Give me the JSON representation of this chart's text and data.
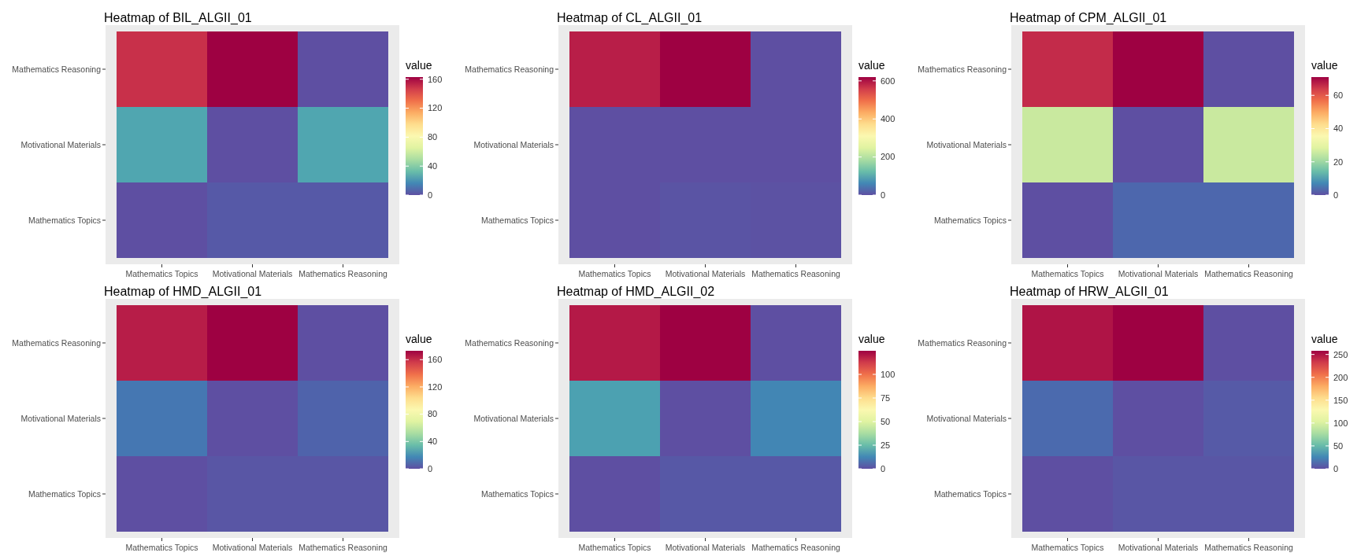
{
  "chart_data": [
    {
      "type": "heatmap",
      "title": "Heatmap of BIL_ALGII_01",
      "legend_title": "value",
      "categories": [
        "Mathematics Topics",
        "Motivational Materials",
        "Mathematics Reasoning"
      ],
      "y_categories": [
        "Mathematics Reasoning",
        "Motivational Materials",
        "Mathematics Topics"
      ],
      "cells": [
        [
          150,
          163,
          0
        ],
        [
          25,
          0,
          25
        ],
        [
          0,
          3,
          3
        ]
      ],
      "clim": [
        0,
        163
      ],
      "cticks": [
        0,
        40,
        80,
        120,
        160
      ]
    },
    {
      "type": "heatmap",
      "title": "Heatmap of CL_ALGII_01",
      "legend_title": "value",
      "categories": [
        "Mathematics Topics",
        "Motivational Materials",
        "Mathematics Reasoning"
      ],
      "y_categories": [
        "Mathematics Reasoning",
        "Motivational Materials",
        "Mathematics Topics"
      ],
      "cells": [
        [
          590,
          620,
          0
        ],
        [
          0,
          0,
          0
        ],
        [
          0,
          5,
          3
        ]
      ],
      "clim": [
        0,
        620
      ],
      "cticks": [
        0,
        200,
        400,
        600
      ]
    },
    {
      "type": "heatmap",
      "title": "Heatmap of CPM_ALGII_01",
      "legend_title": "value",
      "categories": [
        "Mathematics Topics",
        "Motivational Materials",
        "Mathematics Reasoning"
      ],
      "y_categories": [
        "Mathematics Reasoning",
        "Motivational Materials",
        "Mathematics Topics"
      ],
      "cells": [
        [
          66,
          71,
          0
        ],
        [
          25,
          0,
          25
        ],
        [
          0,
          3,
          3
        ]
      ],
      "clim": [
        0,
        71
      ],
      "cticks": [
        0,
        20,
        40,
        60
      ]
    },
    {
      "type": "heatmap",
      "title": "Heatmap of HMD_ALGII_01",
      "legend_title": "value",
      "categories": [
        "Mathematics Topics",
        "Motivational Materials",
        "Mathematics Reasoning"
      ],
      "y_categories": [
        "Mathematics Reasoning",
        "Motivational Materials",
        "Mathematics Topics"
      ],
      "cells": [
        [
          165,
          173,
          0
        ],
        [
          12,
          0,
          6
        ],
        [
          0,
          2,
          2
        ]
      ],
      "clim": [
        0,
        173
      ],
      "cticks": [
        0,
        40,
        80,
        120,
        160
      ]
    },
    {
      "type": "heatmap",
      "title": "Heatmap of HMD_ALGII_02",
      "legend_title": "value",
      "categories": [
        "Mathematics Topics",
        "Motivational Materials",
        "Mathematics Reasoning"
      ],
      "y_categories": [
        "Mathematics Reasoning",
        "Motivational Materials",
        "Mathematics Topics"
      ],
      "cells": [
        [
          120,
          125,
          0
        ],
        [
          18,
          0,
          12
        ],
        [
          0,
          2,
          2
        ]
      ],
      "clim": [
        0,
        125
      ],
      "cticks": [
        0,
        25,
        50,
        75,
        100
      ]
    },
    {
      "type": "heatmap",
      "title": "Heatmap of HRW_ALGII_01",
      "legend_title": "value",
      "categories": [
        "Mathematics Topics",
        "Motivational Materials",
        "Mathematics Reasoning"
      ],
      "y_categories": [
        "Mathematics Reasoning",
        "Motivational Materials",
        "Mathematics Topics"
      ],
      "cells": [
        [
          250,
          258,
          0
        ],
        [
          12,
          0,
          5
        ],
        [
          0,
          3,
          3
        ]
      ],
      "clim": [
        0,
        258
      ],
      "cticks": [
        0,
        50,
        100,
        150,
        200,
        250
      ]
    }
  ]
}
